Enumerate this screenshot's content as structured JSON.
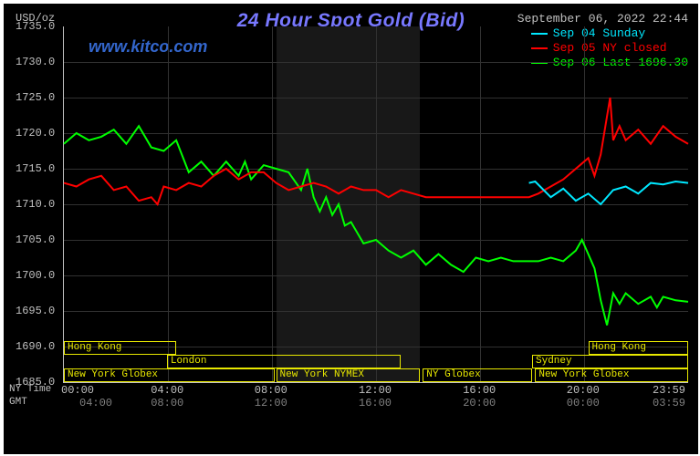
{
  "chart": {
    "title": "24 Hour Spot Gold (Bid)",
    "timestamp": "September 06, 2022 22:44",
    "site_url": "www.kitco.com",
    "watermark": "",
    "y_axis_label": "USD/oz",
    "background_color": "#000000",
    "grid_color": "#313131",
    "axis_color": "#c0c0c0",
    "title_color": "#7878ff",
    "legend": [
      {
        "color": "#00e8ff",
        "label": "Sep 04 Sunday"
      },
      {
        "color": "#ff0000",
        "label": "Sep 05 NY closed"
      },
      {
        "color": "#00ff00",
        "label": "Sep 06 Last 1696.30"
      }
    ],
    "y": {
      "min": 1685.0,
      "max": 1735.0,
      "step": 5.0,
      "ticks": [
        "1735.0",
        "1730.0",
        "1725.0",
        "1720.0",
        "1715.0",
        "1710.0",
        "1705.0",
        "1700.0",
        "1695.0",
        "1690.0",
        "1685.0"
      ]
    },
    "x": {
      "nytime_label": "NY Time",
      "gmt_label": "GMT",
      "nytime_ticks": [
        {
          "pos": 0.0,
          "label": "00:00"
        },
        {
          "pos": 0.167,
          "label": "04:00"
        },
        {
          "pos": 0.333,
          "label": "08:00"
        },
        {
          "pos": 0.5,
          "label": "12:00"
        },
        {
          "pos": 0.667,
          "label": "16:00"
        },
        {
          "pos": 0.833,
          "label": "20:00"
        },
        {
          "pos": 1.0,
          "label": "23:59"
        }
      ],
      "gmt_ticks": [
        {
          "pos": 0.0,
          "label": "04:00"
        },
        {
          "pos": 0.167,
          "label": "08:00"
        },
        {
          "pos": 0.333,
          "label": "12:00"
        },
        {
          "pos": 0.5,
          "label": "16:00"
        },
        {
          "pos": 0.667,
          "label": "20:00"
        },
        {
          "pos": 0.833,
          "label": "00:00"
        },
        {
          "pos": 1.0,
          "label": "03:59"
        }
      ]
    },
    "markets_row1": [
      {
        "label": "Hong Kong",
        "start": 0.0,
        "end": 0.18
      },
      {
        "label": "Hong Kong",
        "start": 0.84,
        "end": 1.0
      }
    ],
    "markets_row2": [
      {
        "label": "London",
        "start": 0.165,
        "end": 0.54
      },
      {
        "label": "Sydney",
        "start": 0.75,
        "end": 1.0
      }
    ],
    "markets_row3": [
      {
        "label": "New York Globex",
        "start": 0.0,
        "end": 0.337
      },
      {
        "label": "New York NYMEX",
        "start": 0.34,
        "end": 0.57
      },
      {
        "label": "NY Globex",
        "start": 0.575,
        "end": 0.75
      },
      {
        "label": "New York Globex",
        "start": 0.755,
        "end": 1.0
      }
    ],
    "dark_bands": [
      {
        "start": 0.34,
        "end": 0.57
      }
    ],
    "series": {
      "cyan": {
        "color": "#00e8ff",
        "width": 2,
        "points": [
          [
            0.745,
            1713.0
          ],
          [
            0.755,
            1713.2
          ],
          [
            0.78,
            1711.0
          ],
          [
            0.8,
            1712.2
          ],
          [
            0.82,
            1710.5
          ],
          [
            0.84,
            1711.5
          ],
          [
            0.86,
            1710.0
          ],
          [
            0.88,
            1712.0
          ],
          [
            0.9,
            1712.5
          ],
          [
            0.92,
            1711.5
          ],
          [
            0.94,
            1713.0
          ],
          [
            0.96,
            1712.8
          ],
          [
            0.98,
            1713.2
          ],
          [
            1.0,
            1713.0
          ]
        ]
      },
      "red": {
        "color": "#ff0000",
        "width": 2,
        "points": [
          [
            0.0,
            1713.0
          ],
          [
            0.02,
            1712.5
          ],
          [
            0.04,
            1713.5
          ],
          [
            0.06,
            1714.0
          ],
          [
            0.08,
            1712.0
          ],
          [
            0.1,
            1712.5
          ],
          [
            0.12,
            1710.5
          ],
          [
            0.14,
            1711.0
          ],
          [
            0.15,
            1710.0
          ],
          [
            0.16,
            1712.5
          ],
          [
            0.18,
            1712.0
          ],
          [
            0.2,
            1713.0
          ],
          [
            0.22,
            1712.5
          ],
          [
            0.24,
            1714.0
          ],
          [
            0.26,
            1715.0
          ],
          [
            0.28,
            1713.5
          ],
          [
            0.3,
            1714.5
          ],
          [
            0.32,
            1714.5
          ],
          [
            0.34,
            1713.0
          ],
          [
            0.36,
            1712.0
          ],
          [
            0.38,
            1712.5
          ],
          [
            0.4,
            1713.0
          ],
          [
            0.42,
            1712.5
          ],
          [
            0.44,
            1711.5
          ],
          [
            0.46,
            1712.5
          ],
          [
            0.48,
            1712.0
          ],
          [
            0.5,
            1712.0
          ],
          [
            0.52,
            1711.0
          ],
          [
            0.54,
            1712.0
          ],
          [
            0.56,
            1711.5
          ],
          [
            0.58,
            1711.0
          ],
          [
            0.6,
            1711.0
          ],
          [
            0.745,
            1711.0
          ],
          [
            0.76,
            1711.5
          ],
          [
            0.78,
            1712.5
          ],
          [
            0.8,
            1713.5
          ],
          [
            0.82,
            1715.0
          ],
          [
            0.84,
            1716.5
          ],
          [
            0.85,
            1714.0
          ],
          [
            0.86,
            1717.0
          ],
          [
            0.875,
            1725.0
          ],
          [
            0.88,
            1719.0
          ],
          [
            0.89,
            1721.0
          ],
          [
            0.9,
            1719.0
          ],
          [
            0.92,
            1720.5
          ],
          [
            0.94,
            1718.5
          ],
          [
            0.96,
            1721.0
          ],
          [
            0.98,
            1719.5
          ],
          [
            1.0,
            1718.5
          ]
        ]
      },
      "green": {
        "color": "#00ff00",
        "width": 2,
        "points": [
          [
            0.0,
            1718.5
          ],
          [
            0.02,
            1720.0
          ],
          [
            0.04,
            1719.0
          ],
          [
            0.06,
            1719.5
          ],
          [
            0.08,
            1720.5
          ],
          [
            0.1,
            1718.5
          ],
          [
            0.12,
            1721.0
          ],
          [
            0.14,
            1718.0
          ],
          [
            0.16,
            1717.5
          ],
          [
            0.18,
            1719.0
          ],
          [
            0.2,
            1714.5
          ],
          [
            0.22,
            1716.0
          ],
          [
            0.24,
            1714.0
          ],
          [
            0.26,
            1716.0
          ],
          [
            0.28,
            1714.0
          ],
          [
            0.29,
            1716.0
          ],
          [
            0.3,
            1713.5
          ],
          [
            0.32,
            1715.5
          ],
          [
            0.34,
            1715.0
          ],
          [
            0.36,
            1714.5
          ],
          [
            0.38,
            1712.0
          ],
          [
            0.39,
            1715.0
          ],
          [
            0.4,
            1711.0
          ],
          [
            0.41,
            1709.0
          ],
          [
            0.42,
            1711.0
          ],
          [
            0.43,
            1708.5
          ],
          [
            0.44,
            1710.0
          ],
          [
            0.45,
            1707.0
          ],
          [
            0.46,
            1707.5
          ],
          [
            0.48,
            1704.5
          ],
          [
            0.5,
            1705.0
          ],
          [
            0.52,
            1703.5
          ],
          [
            0.54,
            1702.5
          ],
          [
            0.56,
            1703.5
          ],
          [
            0.58,
            1701.5
          ],
          [
            0.6,
            1703.0
          ],
          [
            0.62,
            1701.5
          ],
          [
            0.64,
            1700.5
          ],
          [
            0.66,
            1702.5
          ],
          [
            0.68,
            1702.0
          ],
          [
            0.7,
            1702.5
          ],
          [
            0.72,
            1702.0
          ],
          [
            0.74,
            1702.0
          ],
          [
            0.76,
            1702.0
          ],
          [
            0.78,
            1702.5
          ],
          [
            0.8,
            1702.0
          ],
          [
            0.82,
            1703.5
          ],
          [
            0.83,
            1705.0
          ],
          [
            0.84,
            1703.0
          ],
          [
            0.85,
            1701.0
          ],
          [
            0.86,
            1696.5
          ],
          [
            0.87,
            1693.0
          ],
          [
            0.88,
            1697.5
          ],
          [
            0.89,
            1696.0
          ],
          [
            0.9,
            1697.5
          ],
          [
            0.92,
            1696.0
          ],
          [
            0.94,
            1697.0
          ],
          [
            0.95,
            1695.5
          ],
          [
            0.96,
            1697.0
          ],
          [
            0.98,
            1696.5
          ],
          [
            1.0,
            1696.3
          ]
        ]
      }
    }
  }
}
